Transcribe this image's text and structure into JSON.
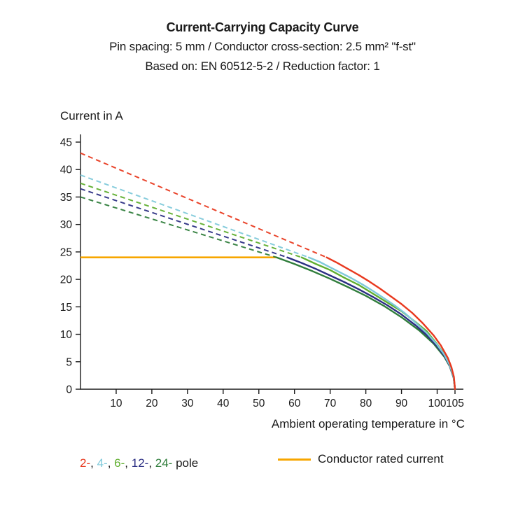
{
  "chart_data": {
    "type": "line",
    "title": "Current-Carrying Capacity Curve",
    "subtitle1": "Pin spacing: 5 mm / Conductor cross-section: 2.5 mm² \"f-st\"",
    "subtitle2": "Based on: EN 60512-5-2 / Reduction factor: 1",
    "ylabel": "Current in A",
    "xlabel": "Ambient operating temperature in °C",
    "xlim": [
      0,
      107
    ],
    "ylim": [
      0,
      45
    ],
    "xticks": [
      10,
      20,
      30,
      40,
      50,
      60,
      70,
      80,
      90,
      100,
      105
    ],
    "yticks": [
      0,
      5,
      10,
      15,
      20,
      25,
      30,
      35,
      40,
      45
    ],
    "grid": false,
    "axis_color": "#1a1a1a",
    "rated_current": {
      "value": 24,
      "x_start": 0,
      "x_end": 55,
      "color": "#f7a600",
      "label": "Conductor rated current"
    },
    "legend": {
      "separator": ", ",
      "suffix": " pole",
      "text_color": "#1a1a1a"
    },
    "series": [
      {
        "name": "2-pole",
        "legend_label": "2-",
        "color": "#e8391f",
        "dashed": [
          [
            0,
            43
          ],
          [
            69,
            24
          ]
        ],
        "solid": [
          [
            69,
            24
          ],
          [
            72,
            23.0
          ],
          [
            75,
            21.9
          ],
          [
            78,
            20.8
          ],
          [
            81,
            19.6
          ],
          [
            84,
            18.3
          ],
          [
            87,
            16.9
          ],
          [
            90,
            15.5
          ],
          [
            93,
            13.9
          ],
          [
            96,
            12.0
          ],
          [
            99,
            9.8
          ],
          [
            101,
            8.0
          ],
          [
            103,
            5.7
          ],
          [
            104,
            4.0
          ],
          [
            104.7,
            2.2
          ],
          [
            105,
            0
          ]
        ]
      },
      {
        "name": "4-pole",
        "legend_label": "4-",
        "color": "#7fc9da",
        "dashed": [
          [
            0,
            39
          ],
          [
            64,
            24
          ]
        ],
        "solid": [
          [
            64,
            24
          ],
          [
            67,
            23.2
          ],
          [
            70,
            22.2
          ],
          [
            73,
            21.2
          ],
          [
            76,
            20.2
          ],
          [
            79,
            19.1
          ],
          [
            82,
            17.9
          ],
          [
            85,
            16.6
          ],
          [
            88,
            15.3
          ],
          [
            91,
            13.8
          ],
          [
            94,
            12.1
          ],
          [
            97,
            10.3
          ],
          [
            100,
            8.1
          ],
          [
            102,
            6.3
          ],
          [
            103.5,
            4.4
          ],
          [
            104.6,
            2.3
          ],
          [
            105,
            0
          ]
        ]
      },
      {
        "name": "6-pole",
        "legend_label": "6-",
        "color": "#5fae2e",
        "dashed": [
          [
            0,
            37.5
          ],
          [
            62,
            24
          ]
        ],
        "solid": [
          [
            62,
            24
          ],
          [
            66,
            22.8
          ],
          [
            70,
            21.7
          ],
          [
            74,
            20.3
          ],
          [
            78,
            19.0
          ],
          [
            82,
            17.4
          ],
          [
            86,
            15.8
          ],
          [
            90,
            14.2
          ],
          [
            94,
            12.2
          ],
          [
            97,
            10.6
          ],
          [
            100,
            8.2
          ],
          [
            102,
            6.4
          ],
          [
            103.5,
            4.5
          ],
          [
            104.6,
            2.4
          ],
          [
            105,
            0
          ]
        ]
      },
      {
        "name": "12-pole",
        "legend_label": "12-",
        "color": "#2b2e83",
        "dashed": [
          [
            0,
            36.5
          ],
          [
            58,
            24
          ]
        ],
        "solid": [
          [
            58,
            24
          ],
          [
            62,
            23.0
          ],
          [
            66,
            21.9
          ],
          [
            70,
            20.7
          ],
          [
            74,
            19.5
          ],
          [
            78,
            18.2
          ],
          [
            82,
            16.8
          ],
          [
            86,
            15.3
          ],
          [
            90,
            13.6
          ],
          [
            94,
            11.6
          ],
          [
            97,
            9.9
          ],
          [
            100,
            7.8
          ],
          [
            102,
            6.1
          ],
          [
            103.5,
            4.3
          ],
          [
            104.6,
            2.2
          ],
          [
            105,
            0
          ]
        ]
      },
      {
        "name": "24-pole",
        "legend_label": "24-",
        "color": "#2f7d3b",
        "dashed": [
          [
            0,
            35
          ],
          [
            55,
            24
          ]
        ],
        "solid": [
          [
            55,
            24
          ],
          [
            60,
            22.8
          ],
          [
            65,
            21.5
          ],
          [
            70,
            20.1
          ],
          [
            75,
            18.6
          ],
          [
            80,
            17.0
          ],
          [
            85,
            15.2
          ],
          [
            90,
            13.1
          ],
          [
            95,
            10.7
          ],
          [
            99,
            8.3
          ],
          [
            102,
            5.9
          ],
          [
            103.5,
            4.2
          ],
          [
            104.6,
            2.1
          ],
          [
            105,
            0
          ]
        ]
      }
    ]
  }
}
